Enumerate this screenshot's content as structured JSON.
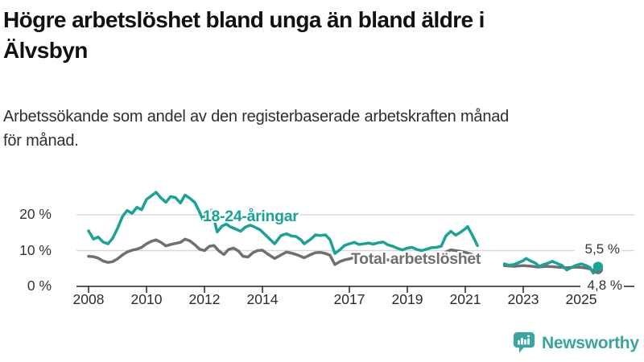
{
  "header": {
    "title_lines": [
      "Högre arbetslöshet bland unga än bland äldre i",
      "Älvsbyn"
    ],
    "subtitle_lines": [
      "Arbetssökande som andel av den registerbaserade arbetskraften månad",
      "för månad."
    ]
  },
  "footer": {
    "brand": "Newsworthy"
  },
  "colors": {
    "young": "#1aa295",
    "total": "#6f6f6f",
    "brand": "#3aa49e",
    "axis": "#3f3f3f",
    "grid": "#d9d9d9",
    "text": "#333333"
  },
  "chart_data": {
    "type": "line",
    "title": "Högre arbetslöshet bland unga än bland äldre i Älvsbyn",
    "subtitle": "Arbetssökande som andel av den registerbaserade arbetskraften månad för månad.",
    "unit": "percent of registered labour force",
    "ylim": [
      0,
      27
    ],
    "xlim": [
      2007.6,
      2026.8
    ],
    "grid": "horizontal",
    "legend": "inline-labels",
    "yticks": [
      {
        "value": 0,
        "label": "0 %"
      },
      {
        "value": 10,
        "label": "10 %"
      },
      {
        "value": 20,
        "label": "20 %"
      }
    ],
    "xticks": [
      {
        "value": 2008,
        "label": "2008"
      },
      {
        "value": 2010,
        "label": "2010"
      },
      {
        "value": 2012,
        "label": "2012"
      },
      {
        "value": 2014,
        "label": "2014"
      },
      {
        "value": 2017,
        "label": "2017"
      },
      {
        "value": 2019,
        "label": "2019"
      },
      {
        "value": 2021,
        "label": "2021"
      },
      {
        "value": 2023,
        "label": "2023"
      },
      {
        "value": 2025,
        "label": "2025"
      }
    ],
    "series": [
      {
        "name": "18-24-åringar",
        "color": "#1aa295",
        "end_label": "5,5 %",
        "end_value": 5.5,
        "segments": [
          [
            [
              2008.0,
              15.5
            ],
            [
              2008.17,
              13.2
            ],
            [
              2008.33,
              13.8
            ],
            [
              2008.5,
              12.4
            ],
            [
              2008.67,
              11.9
            ],
            [
              2008.83,
              13.4
            ],
            [
              2009.0,
              16.2
            ],
            [
              2009.17,
              19.5
            ],
            [
              2009.33,
              21.2
            ],
            [
              2009.5,
              20.4
            ],
            [
              2009.67,
              22.1
            ],
            [
              2009.83,
              21.4
            ],
            [
              2010.0,
              24.3
            ],
            [
              2010.17,
              25.3
            ],
            [
              2010.33,
              26.3
            ],
            [
              2010.5,
              24.7
            ],
            [
              2010.67,
              23.5
            ],
            [
              2010.83,
              25.1
            ],
            [
              2011.0,
              24.8
            ],
            [
              2011.17,
              23.3
            ],
            [
              2011.33,
              25.5
            ],
            [
              2011.5,
              24.6
            ],
            [
              2011.67,
              23.4
            ],
            [
              2011.83,
              20.8
            ],
            [
              2011.94,
              18.7
            ],
            [
              2012.08,
              20.6
            ],
            [
              2012.25,
              21.3
            ],
            [
              2012.44,
              15.2
            ],
            [
              2012.6,
              16.8
            ],
            [
              2012.75,
              17.4
            ],
            [
              2012.9,
              16.6
            ],
            [
              2013.08,
              16.0
            ],
            [
              2013.25,
              15.4
            ],
            [
              2013.42,
              16.6
            ],
            [
              2013.58,
              17.1
            ],
            [
              2013.75,
              16.5
            ],
            [
              2013.92,
              15.8
            ],
            [
              2014.1,
              14.4
            ],
            [
              2014.42,
              11.9
            ],
            [
              2014.64,
              14.2
            ],
            [
              2014.83,
              14.7
            ],
            [
              2015.0,
              14.1
            ],
            [
              2015.17,
              13.9
            ],
            [
              2015.33,
              13.0
            ],
            [
              2015.44,
              11.9
            ],
            [
              2015.67,
              13.2
            ],
            [
              2015.83,
              14.4
            ],
            [
              2016.0,
              14.2
            ],
            [
              2016.17,
              14.4
            ],
            [
              2016.33,
              13.1
            ],
            [
              2016.5,
              9.2
            ],
            [
              2016.67,
              10.2
            ],
            [
              2016.83,
              11.4
            ],
            [
              2017.0,
              11.9
            ],
            [
              2017.17,
              12.3
            ],
            [
              2017.33,
              11.7
            ],
            [
              2017.5,
              11.9
            ],
            [
              2017.67,
              12.1
            ],
            [
              2017.83,
              11.8
            ],
            [
              2018.0,
              12.2
            ],
            [
              2018.17,
              12.4
            ],
            [
              2018.33,
              11.6
            ],
            [
              2018.5,
              11.2
            ],
            [
              2018.67,
              10.6
            ],
            [
              2018.83,
              10.2
            ],
            [
              2019.0,
              10.7
            ],
            [
              2019.17,
              10.9
            ],
            [
              2019.33,
              10.3
            ],
            [
              2019.5,
              10.0
            ],
            [
              2019.67,
              10.4
            ],
            [
              2019.83,
              10.8
            ],
            [
              2020.0,
              10.9
            ],
            [
              2020.17,
              11.2
            ],
            [
              2020.33,
              14.1
            ],
            [
              2020.5,
              15.4
            ],
            [
              2020.67,
              14.3
            ],
            [
              2020.83,
              15.1
            ],
            [
              2021.0,
              16.1
            ],
            [
              2021.08,
              16.7
            ],
            [
              2021.25,
              14.2
            ],
            [
              2021.42,
              11.4
            ]
          ],
          [
            [
              2022.35,
              6.3
            ],
            [
              2022.5,
              5.9
            ],
            [
              2022.67,
              6.1
            ],
            [
              2022.83,
              6.6
            ],
            [
              2023.0,
              7.2
            ],
            [
              2023.1,
              7.8
            ],
            [
              2023.25,
              7.1
            ],
            [
              2023.42,
              6.5
            ],
            [
              2023.55,
              5.6
            ],
            [
              2023.7,
              6.1
            ],
            [
              2023.83,
              6.4
            ],
            [
              2024.0,
              7.0
            ],
            [
              2024.17,
              6.4
            ],
            [
              2024.33,
              5.9
            ],
            [
              2024.5,
              4.6
            ],
            [
              2024.67,
              5.3
            ],
            [
              2024.83,
              5.9
            ],
            [
              2025.0,
              6.3
            ],
            [
              2025.17,
              5.8
            ],
            [
              2025.3,
              5.3
            ],
            [
              2025.42,
              3.7
            ],
            [
              2025.58,
              5.5
            ]
          ]
        ]
      },
      {
        "name": "Total arbetslöshet",
        "color": "#6f6f6f",
        "end_label": "4,8 %",
        "end_value": 4.8,
        "segments": [
          [
            [
              2008.0,
              8.4
            ],
            [
              2008.17,
              8.3
            ],
            [
              2008.33,
              7.9
            ],
            [
              2008.5,
              7.1
            ],
            [
              2008.67,
              6.7
            ],
            [
              2008.83,
              6.9
            ],
            [
              2009.0,
              7.7
            ],
            [
              2009.17,
              8.8
            ],
            [
              2009.33,
              9.6
            ],
            [
              2009.5,
              10.1
            ],
            [
              2009.67,
              10.4
            ],
            [
              2009.83,
              10.9
            ],
            [
              2010.0,
              11.9
            ],
            [
              2010.17,
              12.6
            ],
            [
              2010.33,
              13.0
            ],
            [
              2010.5,
              12.3
            ],
            [
              2010.67,
              11.3
            ],
            [
              2010.83,
              11.7
            ],
            [
              2011.0,
              12.0
            ],
            [
              2011.17,
              12.3
            ],
            [
              2011.33,
              13.2
            ],
            [
              2011.5,
              12.7
            ],
            [
              2011.67,
              11.6
            ],
            [
              2011.83,
              10.4
            ],
            [
              2012.0,
              10.0
            ],
            [
              2012.17,
              11.2
            ],
            [
              2012.33,
              11.4
            ],
            [
              2012.5,
              9.9
            ],
            [
              2012.67,
              8.9
            ],
            [
              2012.83,
              10.3
            ],
            [
              2013.0,
              10.7
            ],
            [
              2013.17,
              9.9
            ],
            [
              2013.33,
              8.4
            ],
            [
              2013.5,
              8.2
            ],
            [
              2013.67,
              9.4
            ],
            [
              2013.83,
              10.0
            ],
            [
              2014.0,
              10.1
            ],
            [
              2014.17,
              9.1
            ],
            [
              2014.42,
              7.8
            ],
            [
              2014.67,
              8.9
            ],
            [
              2014.83,
              9.6
            ],
            [
              2015.0,
              9.3
            ],
            [
              2015.17,
              8.9
            ],
            [
              2015.44,
              8.0
            ],
            [
              2015.67,
              8.9
            ],
            [
              2015.83,
              9.4
            ],
            [
              2016.0,
              9.5
            ],
            [
              2016.17,
              9.2
            ],
            [
              2016.33,
              8.7
            ],
            [
              2016.5,
              6.1
            ],
            [
              2016.67,
              6.9
            ],
            [
              2016.83,
              7.4
            ],
            [
              2017.0,
              7.7
            ],
            [
              2017.17,
              8.0
            ],
            [
              2017.33,
              7.7
            ],
            [
              2017.5,
              7.9
            ],
            [
              2017.67,
              8.1
            ],
            [
              2017.83,
              7.8
            ],
            [
              2018.0,
              8.1
            ],
            [
              2018.17,
              7.9
            ],
            [
              2018.33,
              7.4
            ],
            [
              2018.5,
              7.2
            ],
            [
              2018.67,
              7.4
            ],
            [
              2018.83,
              7.7
            ],
            [
              2019.0,
              7.9
            ],
            [
              2019.17,
              7.6
            ],
            [
              2019.33,
              7.3
            ],
            [
              2019.5,
              7.4
            ],
            [
              2019.67,
              7.7
            ],
            [
              2019.83,
              8.0
            ],
            [
              2020.0,
              8.1
            ],
            [
              2020.17,
              8.7
            ],
            [
              2020.33,
              9.6
            ],
            [
              2020.5,
              10.2
            ],
            [
              2020.67,
              10.0
            ],
            [
              2020.83,
              9.8
            ],
            [
              2021.0,
              9.5
            ],
            [
              2021.17,
              9.1
            ],
            [
              2021.42,
              8.2
            ]
          ],
          [
            [
              2022.35,
              5.8
            ],
            [
              2022.5,
              5.7
            ],
            [
              2022.67,
              5.6
            ],
            [
              2022.83,
              5.7
            ],
            [
              2023.0,
              5.8
            ],
            [
              2023.17,
              5.7
            ],
            [
              2023.33,
              5.6
            ],
            [
              2023.5,
              5.4
            ],
            [
              2023.67,
              5.5
            ],
            [
              2023.83,
              5.6
            ],
            [
              2024.0,
              5.5
            ],
            [
              2024.17,
              5.4
            ],
            [
              2024.33,
              5.3
            ],
            [
              2024.5,
              5.2
            ],
            [
              2024.67,
              5.3
            ],
            [
              2024.83,
              5.4
            ],
            [
              2025.0,
              5.3
            ],
            [
              2025.17,
              5.1
            ],
            [
              2025.3,
              4.9
            ],
            [
              2025.42,
              4.3
            ],
            [
              2025.58,
              4.8
            ]
          ]
        ]
      }
    ]
  }
}
